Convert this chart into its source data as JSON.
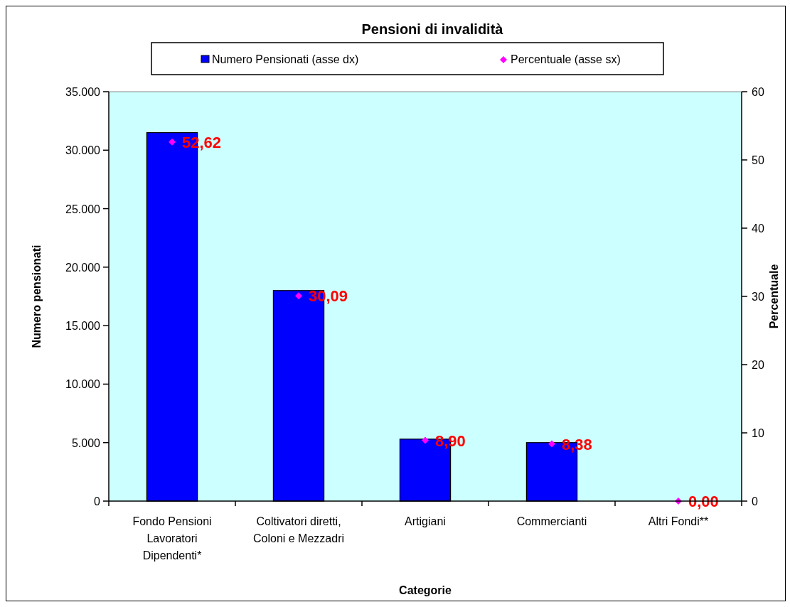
{
  "chart_data": {
    "type": "bar",
    "title": "Pensioni di invalidità",
    "xlabel": "Categorie",
    "ylabel": "Numero pensionati",
    "y2label": "Percentuale",
    "categories": [
      "Fondo Pensioni Lavoratori Dipendenti*",
      "Coltivatori diretti, Coloni e Mezzadri",
      "Artigiani",
      "Commercianti",
      "Altri Fondi**"
    ],
    "series": [
      {
        "name": "Numero Pensionati (asse dx)",
        "color": "#0000ff",
        "values": [
          31500,
          18000,
          5300,
          5000,
          0
        ]
      },
      {
        "name": "Percentuale (asse sx)",
        "type": "scatter",
        "axis": "y2",
        "color": "#ff00ff",
        "marker": "diamond",
        "values": [
          52.62,
          30.09,
          8.9,
          8.38,
          0
        ],
        "value_labels": [
          "52,62",
          "30,09",
          "8,90",
          "8,38",
          "0,00"
        ]
      }
    ],
    "ylim": [
      0,
      35000
    ],
    "yticks": [
      {
        "value": 0,
        "label": "0"
      },
      {
        "value": 5000,
        "label": "5.000"
      },
      {
        "value": 10000,
        "label": "10.000"
      },
      {
        "value": 15000,
        "label": "15.000"
      },
      {
        "value": 20000,
        "label": "20.000"
      },
      {
        "value": 25000,
        "label": "25.000"
      },
      {
        "value": 30000,
        "label": "30.000"
      },
      {
        "value": 35000,
        "label": "35.000"
      }
    ],
    "y2lim": [
      0,
      60
    ],
    "y2ticks": [
      0,
      10,
      20,
      30,
      40,
      50,
      60
    ],
    "grid": false,
    "legend": "top"
  }
}
